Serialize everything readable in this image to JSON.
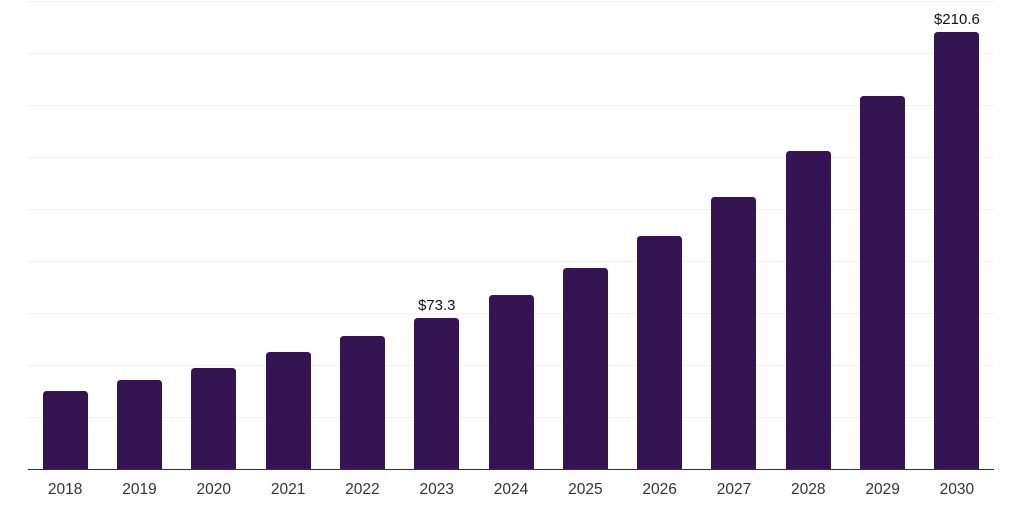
{
  "colors": {
    "background": "#ffffff",
    "bar": "#341452",
    "gridline": "#f2f2f2",
    "axis": "#333333",
    "tick_label": "#333333",
    "data_label": "#111111"
  },
  "chart_data": {
    "type": "bar",
    "title": "",
    "xlabel": "",
    "ylabel": "",
    "categories": [
      "2018",
      "2019",
      "2020",
      "2021",
      "2022",
      "2023",
      "2024",
      "2025",
      "2026",
      "2027",
      "2028",
      "2029",
      "2030"
    ],
    "values": [
      38.0,
      43.5,
      49.0,
      56.8,
      64.5,
      73.3,
      84.1,
      97.1,
      112.4,
      131.4,
      153.2,
      180.0,
      210.6
    ],
    "data_labels": {
      "2023": "$73.3",
      "2030": "$210.6"
    },
    "unit_prefix": "$",
    "ylim": [
      0,
      226
    ],
    "gridline_step": 25,
    "grid": true,
    "legend": false,
    "bar_corner_radius": 3.5
  }
}
